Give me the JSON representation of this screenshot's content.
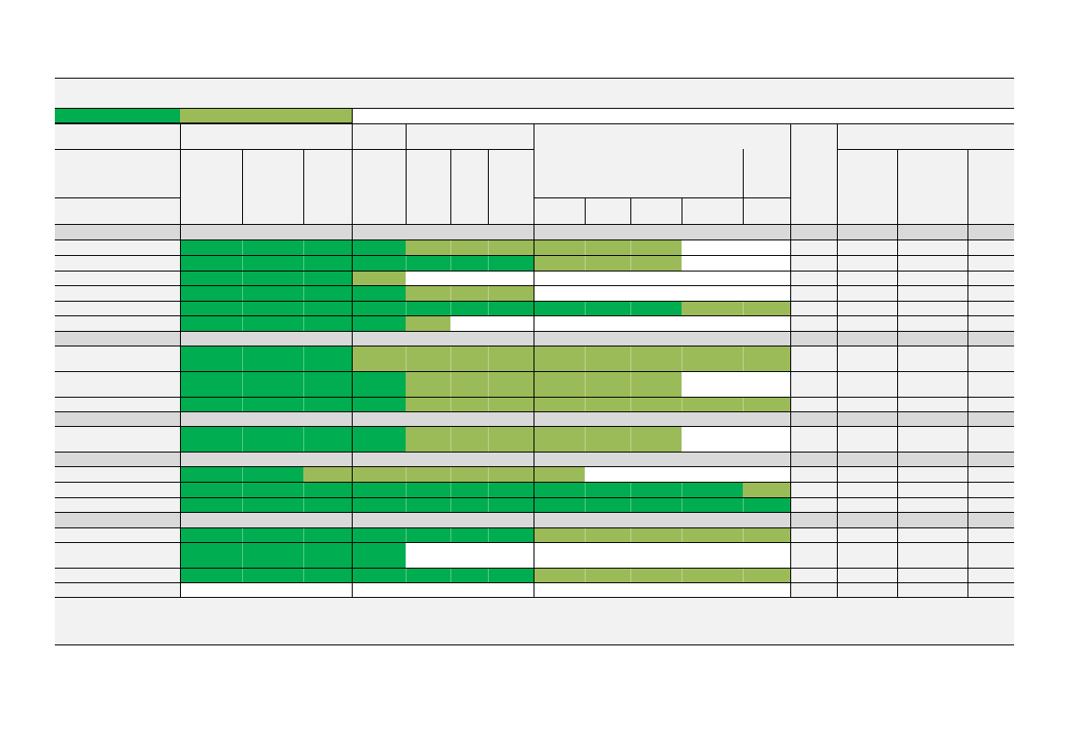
{
  "colors": {
    "dark_green": "#00AD50",
    "light_green": "#9BBB59",
    "panel_gray": "#F2F2F2",
    "section_gray": "#D9D9D9",
    "white": "#FFFFFF",
    "rule": "#000000"
  },
  "legend": [
    {
      "name": "legend-dark-green-swatch",
      "color": "dark_green"
    },
    {
      "name": "legend-light-green-swatch",
      "color": "light_green"
    }
  ],
  "rows": [
    {
      "kind": "section"
    },
    {
      "kind": "item",
      "fills": [
        "D",
        "D",
        "D",
        "D",
        "L",
        "L",
        "L",
        "L",
        "L",
        "L",
        "W",
        "W"
      ]
    },
    {
      "kind": "item",
      "fills": [
        "D",
        "D",
        "D",
        "D",
        "D",
        "D",
        "D",
        "L",
        "L",
        "L",
        "W",
        "W"
      ]
    },
    {
      "kind": "item",
      "fills": [
        "D",
        "D",
        "D",
        "L",
        "W",
        "W",
        "W",
        "W",
        "W",
        "W",
        "W",
        "W"
      ]
    },
    {
      "kind": "item",
      "fills": [
        "D",
        "D",
        "D",
        "D",
        "L",
        "L",
        "L",
        "W",
        "W",
        "W",
        "W",
        "W"
      ]
    },
    {
      "kind": "item",
      "fills": [
        "D",
        "D",
        "D",
        "D",
        "D",
        "D",
        "D",
        "D",
        "D",
        "D",
        "L",
        "L"
      ]
    },
    {
      "kind": "item",
      "fills": [
        "D",
        "D",
        "D",
        "D",
        "L",
        "W",
        "W",
        "W",
        "W",
        "W",
        "W",
        "W"
      ]
    },
    {
      "kind": "section"
    },
    {
      "kind": "item",
      "fills": [
        "D",
        "D",
        "D",
        "L",
        "L",
        "L",
        "L",
        "L",
        "L",
        "L",
        "L",
        "L"
      ]
    },
    {
      "kind": "item",
      "fills": [
        "D",
        "D",
        "D",
        "D",
        "L",
        "L",
        "L",
        "L",
        "L",
        "L",
        "W",
        "W"
      ]
    },
    {
      "kind": "item",
      "fills": [
        "D",
        "D",
        "D",
        "D",
        "L",
        "L",
        "L",
        "L",
        "L",
        "L",
        "L",
        "L"
      ]
    },
    {
      "kind": "section"
    },
    {
      "kind": "item",
      "fills": [
        "D",
        "D",
        "D",
        "D",
        "L",
        "L",
        "L",
        "L",
        "L",
        "L",
        "W",
        "W"
      ]
    },
    {
      "kind": "section"
    },
    {
      "kind": "item",
      "fills": [
        "D",
        "D",
        "L",
        "L",
        "L",
        "L",
        "L",
        "L",
        "W",
        "W",
        "W",
        "W"
      ]
    },
    {
      "kind": "item",
      "fills": [
        "D",
        "D",
        "D",
        "D",
        "D",
        "D",
        "D",
        "D",
        "D",
        "D",
        "D",
        "L"
      ]
    },
    {
      "kind": "item",
      "fills": [
        "D",
        "D",
        "D",
        "D",
        "D",
        "D",
        "D",
        "D",
        "D",
        "D",
        "D",
        "D"
      ]
    },
    {
      "kind": "section"
    },
    {
      "kind": "item",
      "fills": [
        "D",
        "D",
        "D",
        "D",
        "D",
        "D",
        "D",
        "L",
        "L",
        "L",
        "L",
        "L"
      ]
    },
    {
      "kind": "item",
      "fills": [
        "D",
        "D",
        "D",
        "D",
        "W",
        "W",
        "W",
        "W",
        "W",
        "W",
        "W",
        "W"
      ]
    },
    {
      "kind": "item",
      "fills": [
        "D",
        "D",
        "D",
        "D",
        "D",
        "D",
        "D",
        "L",
        "L",
        "L",
        "L",
        "L"
      ]
    },
    {
      "kind": "item",
      "fills": [
        "W",
        "W",
        "W",
        "W",
        "W",
        "W",
        "W",
        "W",
        "W",
        "W",
        "W",
        "W"
      ]
    }
  ]
}
